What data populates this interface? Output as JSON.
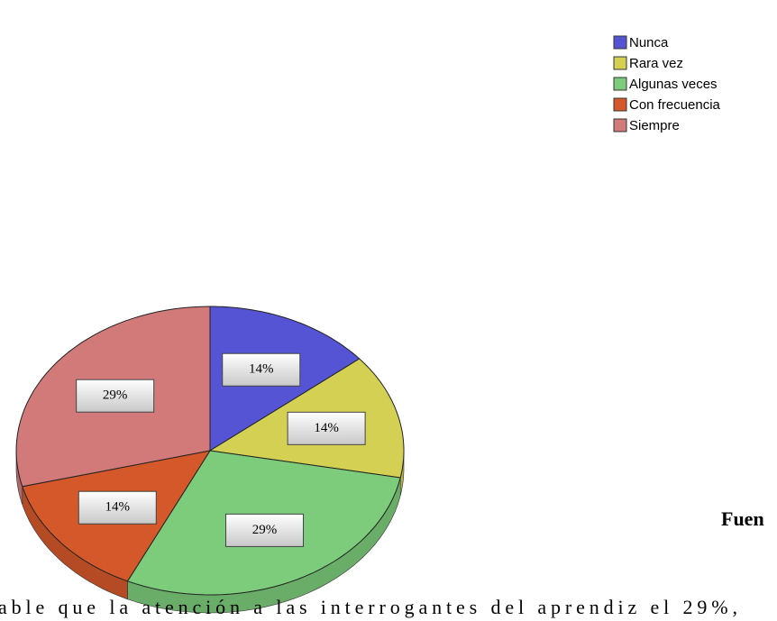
{
  "chart_data": {
    "type": "pie",
    "categories": [
      "Nunca",
      "Rara vez",
      "Algunas veces",
      "Con frecuencia",
      "Siempre"
    ],
    "values": [
      14,
      14,
      29,
      14,
      29
    ],
    "value_labels": [
      "14%",
      "14%",
      "29%",
      "14%",
      "29%"
    ],
    "colors": [
      "#5454d4",
      "#d4d054",
      "#7ccc7c",
      "#d4582a",
      "#d27a7a"
    ],
    "legend": "top-right"
  },
  "document": {
    "source_fragment": "Fuen",
    "body_fragment": "able que la atención a las interrogantes del aprendiz el 29%,"
  }
}
